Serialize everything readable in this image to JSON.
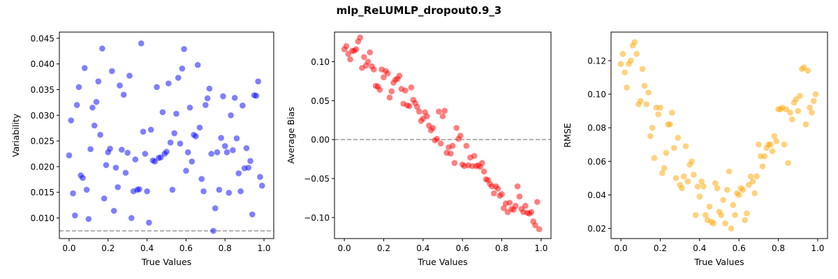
{
  "figure": {
    "title": "mlp_ReLUMLP_dropout0.9_3"
  },
  "chart_data": [
    {
      "type": "scatter",
      "title": "",
      "xlabel": "True Values",
      "ylabel": "Variability",
      "xlim": [
        -0.05,
        1.05
      ],
      "ylim": [
        0.006,
        0.0462
      ],
      "xticks": [
        0.0,
        0.2,
        0.4,
        0.6,
        0.8,
        1.0
      ],
      "xtick_labels": [
        "0.0",
        "0.2",
        "0.4",
        "0.6",
        "0.8",
        "1.0"
      ],
      "yticks": [
        0.01,
        0.015,
        0.02,
        0.025,
        0.03,
        0.035,
        0.04,
        0.045
      ],
      "ytick_labels": [
        "0.010",
        "0.015",
        "0.020",
        "0.025",
        "0.030",
        "0.035",
        "0.040",
        "0.045"
      ],
      "grid": false,
      "color": "#0000ff",
      "alpha": 0.5,
      "reference_line": {
        "y": 0.0075,
        "style": "dashed",
        "color": "#999999"
      },
      "x": [
        0.0,
        0.01,
        0.02,
        0.03,
        0.04,
        0.05,
        0.06,
        0.07,
        0.08,
        0.09,
        0.1,
        0.11,
        0.12,
        0.13,
        0.14,
        0.15,
        0.16,
        0.17,
        0.18,
        0.19,
        0.2,
        0.21,
        0.22,
        0.23,
        0.24,
        0.25,
        0.26,
        0.27,
        0.28,
        0.29,
        0.3,
        0.31,
        0.32,
        0.33,
        0.34,
        0.35,
        0.36,
        0.37,
        0.38,
        0.39,
        0.4,
        0.41,
        0.42,
        0.43,
        0.44,
        0.45,
        0.46,
        0.47,
        0.48,
        0.49,
        0.5,
        0.51,
        0.52,
        0.53,
        0.54,
        0.55,
        0.56,
        0.57,
        0.58,
        0.59,
        0.6,
        0.61,
        0.62,
        0.63,
        0.64,
        0.65,
        0.66,
        0.67,
        0.68,
        0.69,
        0.7,
        0.71,
        0.72,
        0.73,
        0.74,
        0.75,
        0.76,
        0.77,
        0.78,
        0.79,
        0.8,
        0.81,
        0.82,
        0.83,
        0.84,
        0.85,
        0.86,
        0.87,
        0.88,
        0.89,
        0.9,
        0.91,
        0.92,
        0.93,
        0.94,
        0.95,
        0.96,
        0.97,
        0.98,
        0.99
      ],
      "y": [
        0.0222,
        0.029,
        0.0148,
        0.0105,
        0.032,
        0.0355,
        0.0183,
        0.0178,
        0.0392,
        0.0155,
        0.0098,
        0.0234,
        0.0315,
        0.028,
        0.0326,
        0.0366,
        0.0262,
        0.043,
        0.0138,
        0.0203,
        0.0228,
        0.0235,
        0.0386,
        0.0114,
        0.0198,
        0.016,
        0.0358,
        0.0233,
        0.034,
        0.0188,
        0.0227,
        0.0377,
        0.01,
        0.0152,
        0.0214,
        0.0155,
        0.0156,
        0.044,
        0.0268,
        0.0225,
        0.0152,
        0.0091,
        0.0272,
        0.0212,
        0.021,
        0.0355,
        0.0217,
        0.0218,
        0.0306,
        0.0225,
        0.0229,
        0.0362,
        0.0247,
        0.0155,
        0.0265,
        0.0303,
        0.0373,
        0.0245,
        0.0391,
        0.0429,
        0.0192,
        0.0228,
        0.0315,
        0.021,
        0.0262,
        0.0259,
        0.0398,
        0.0276,
        0.0176,
        0.0152,
        0.032,
        0.0333,
        0.0352,
        0.0225,
        0.0075,
        0.0119,
        0.0228,
        0.0155,
        0.0256,
        0.0337,
        0.024,
        0.0228,
        0.0149,
        0.03,
        0.0232,
        0.0334,
        0.0255,
        0.0187,
        0.0152,
        0.0319,
        0.0197,
        0.0236,
        0.0198,
        0.0211,
        0.0107,
        0.0339,
        0.0338,
        0.0366,
        0.018,
        0.0163
      ]
    },
    {
      "type": "scatter",
      "title": "",
      "xlabel": "True Values",
      "ylabel": "Average Bias",
      "xlim": [
        -0.05,
        1.05
      ],
      "ylim": [
        -0.127,
        0.138
      ],
      "xticks": [
        0.0,
        0.2,
        0.4,
        0.6,
        0.8,
        1.0
      ],
      "xtick_labels": [
        "0.0",
        "0.2",
        "0.4",
        "0.6",
        "0.8",
        "1.0"
      ],
      "yticks": [
        -0.1,
        -0.05,
        0.0,
        0.05,
        0.1
      ],
      "ytick_labels": [
        "−0.10",
        "−0.05",
        "0.00",
        "0.05",
        "0.10"
      ],
      "grid": false,
      "color": "#ff0000",
      "alpha": 0.5,
      "reference_line": {
        "y": 0.0,
        "style": "dashed",
        "color": "#999999"
      },
      "x": [
        0.0,
        0.01,
        0.02,
        0.03,
        0.04,
        0.05,
        0.06,
        0.07,
        0.08,
        0.09,
        0.1,
        0.11,
        0.12,
        0.13,
        0.14,
        0.15,
        0.16,
        0.17,
        0.18,
        0.19,
        0.2,
        0.21,
        0.22,
        0.23,
        0.24,
        0.25,
        0.26,
        0.27,
        0.28,
        0.29,
        0.3,
        0.31,
        0.32,
        0.33,
        0.34,
        0.35,
        0.36,
        0.37,
        0.38,
        0.39,
        0.4,
        0.41,
        0.42,
        0.43,
        0.44,
        0.45,
        0.46,
        0.47,
        0.48,
        0.49,
        0.5,
        0.51,
        0.52,
        0.53,
        0.54,
        0.55,
        0.56,
        0.57,
        0.58,
        0.59,
        0.6,
        0.61,
        0.62,
        0.63,
        0.64,
        0.65,
        0.66,
        0.67,
        0.68,
        0.69,
        0.7,
        0.71,
        0.72,
        0.73,
        0.74,
        0.75,
        0.76,
        0.77,
        0.78,
        0.79,
        0.8,
        0.81,
        0.82,
        0.83,
        0.84,
        0.85,
        0.86,
        0.87,
        0.88,
        0.89,
        0.9,
        0.91,
        0.92,
        0.93,
        0.94,
        0.95,
        0.96,
        0.97,
        0.98,
        0.99
      ],
      "y": [
        0.116,
        0.12,
        0.11,
        0.103,
        0.114,
        0.114,
        0.116,
        0.126,
        0.131,
        0.092,
        0.106,
        0.095,
        0.1,
        0.112,
        0.094,
        0.09,
        0.069,
        0.068,
        0.064,
        0.09,
        0.08,
        0.088,
        0.085,
        0.054,
        0.062,
        0.073,
        0.077,
        0.078,
        0.082,
        0.065,
        0.046,
        0.063,
        0.044,
        0.043,
        0.067,
        0.051,
        0.047,
        0.042,
        0.036,
        0.024,
        0.027,
        0.035,
        0.03,
        0.018,
        0.012,
        0.015,
        -0.001,
        0.001,
        0.036,
        -0.005,
        0.03,
        0.037,
        -0.017,
        -0.01,
        -0.018,
        -0.008,
        -0.03,
        0.015,
        0.001,
        0.005,
        -0.032,
        -0.034,
        -0.008,
        -0.033,
        -0.023,
        -0.034,
        -0.021,
        -0.034,
        -0.033,
        -0.035,
        -0.03,
        -0.041,
        -0.051,
        -0.052,
        -0.057,
        -0.06,
        -0.069,
        -0.06,
        -0.063,
        -0.072,
        -0.07,
        -0.088,
        -0.082,
        -0.093,
        -0.081,
        -0.089,
        -0.09,
        -0.085,
        -0.06,
        -0.073,
        -0.089,
        -0.093,
        -0.085,
        -0.094,
        -0.095,
        -0.093,
        -0.105,
        -0.11,
        -0.08,
        -0.115
      ]
    },
    {
      "type": "scatter",
      "title": "",
      "xlabel": "True Values",
      "ylabel": "RMSE",
      "xlim": [
        -0.05,
        1.05
      ],
      "ylim": [
        0.014,
        0.137
      ],
      "xticks": [
        0.0,
        0.2,
        0.4,
        0.6,
        0.8,
        1.0
      ],
      "xtick_labels": [
        "0.0",
        "0.2",
        "0.4",
        "0.6",
        "0.8",
        "1.0"
      ],
      "yticks": [
        0.02,
        0.04,
        0.06,
        0.08,
        0.1,
        0.12
      ],
      "ytick_labels": [
        "0.02",
        "0.04",
        "0.06",
        "0.08",
        "0.10",
        "0.12"
      ],
      "grid": false,
      "color": "#ffa500",
      "alpha": 0.5,
      "reference_line": null,
      "x": [
        0.0,
        0.01,
        0.02,
        0.03,
        0.04,
        0.05,
        0.06,
        0.07,
        0.08,
        0.09,
        0.1,
        0.11,
        0.12,
        0.13,
        0.14,
        0.15,
        0.16,
        0.17,
        0.18,
        0.19,
        0.2,
        0.21,
        0.22,
        0.23,
        0.24,
        0.25,
        0.26,
        0.27,
        0.28,
        0.29,
        0.3,
        0.31,
        0.32,
        0.33,
        0.34,
        0.35,
        0.36,
        0.37,
        0.38,
        0.39,
        0.4,
        0.41,
        0.42,
        0.43,
        0.44,
        0.45,
        0.46,
        0.47,
        0.48,
        0.49,
        0.5,
        0.51,
        0.52,
        0.53,
        0.54,
        0.55,
        0.56,
        0.57,
        0.58,
        0.59,
        0.6,
        0.61,
        0.62,
        0.63,
        0.64,
        0.65,
        0.66,
        0.67,
        0.68,
        0.69,
        0.7,
        0.71,
        0.72,
        0.73,
        0.74,
        0.75,
        0.76,
        0.77,
        0.78,
        0.79,
        0.8,
        0.81,
        0.82,
        0.83,
        0.84,
        0.85,
        0.86,
        0.87,
        0.88,
        0.89,
        0.9,
        0.91,
        0.92,
        0.93,
        0.94,
        0.95,
        0.96,
        0.97,
        0.98,
        0.99
      ],
      "y": [
        0.118,
        0.124,
        0.113,
        0.104,
        0.118,
        0.12,
        0.129,
        0.131,
        0.124,
        0.094,
        0.096,
        0.115,
        0.105,
        0.094,
        0.101,
        0.075,
        0.08,
        0.062,
        0.092,
        0.088,
        0.092,
        0.053,
        0.056,
        0.065,
        0.082,
        0.082,
        0.089,
        0.068,
        0.05,
        0.074,
        0.046,
        0.044,
        0.051,
        0.069,
        0.048,
        0.058,
        0.06,
        0.052,
        0.028,
        0.045,
        0.039,
        0.048,
        0.045,
        0.028,
        0.025,
        0.033,
        0.024,
        0.023,
        0.047,
        0.044,
        0.03,
        0.028,
        0.037,
        0.023,
        0.043,
        0.054,
        0.02,
        0.034,
        0.028,
        0.041,
        0.04,
        0.044,
        0.043,
        0.025,
        0.029,
        0.046,
        0.051,
        0.048,
        0.041,
        0.051,
        0.07,
        0.063,
        0.057,
        0.063,
        0.068,
        0.07,
        0.07,
        0.066,
        0.075,
        0.072,
        0.091,
        0.091,
        0.092,
        0.07,
        0.091,
        0.059,
        0.089,
        0.085,
        0.095,
        0.097,
        0.09,
        0.099,
        0.115,
        0.116,
        0.082,
        0.114,
        0.092,
        0.089,
        0.096,
        0.1
      ]
    }
  ]
}
